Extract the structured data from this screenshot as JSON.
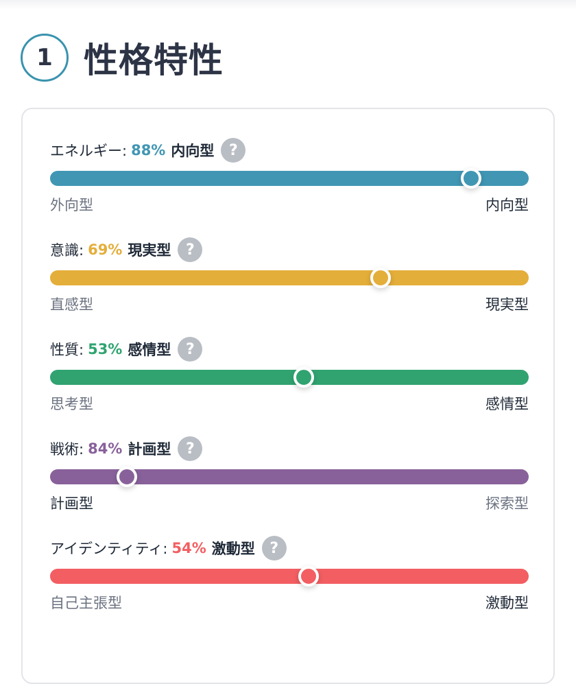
{
  "section": {
    "number": "1",
    "title": "性格特性"
  },
  "traits": [
    {
      "name": "エネルギー:",
      "percent": "88%",
      "type": "内向型",
      "color": "#4196b4",
      "position_percent": 88,
      "left": "外向型",
      "right": "内向型",
      "active": "right"
    },
    {
      "name": "意識:",
      "percent": "69%",
      "type": "現実型",
      "color": "#e4ae3a",
      "position_percent": 69,
      "left": "直感型",
      "right": "現実型",
      "active": "right"
    },
    {
      "name": "性質:",
      "percent": "53%",
      "type": "感情型",
      "color": "#30a370",
      "position_percent": 53,
      "left": "思考型",
      "right": "感情型",
      "active": "right"
    },
    {
      "name": "戦術:",
      "percent": "84%",
      "type": "計画型",
      "color": "#88619a",
      "position_percent": 16,
      "left": "計画型",
      "right": "探索型",
      "active": "left"
    },
    {
      "name": "アイデンティティ:",
      "percent": "54%",
      "type": "激動型",
      "color": "#f25e62",
      "position_percent": 54,
      "left": "自己主張型",
      "right": "激動型",
      "active": "right"
    }
  ],
  "help_icon": "?"
}
